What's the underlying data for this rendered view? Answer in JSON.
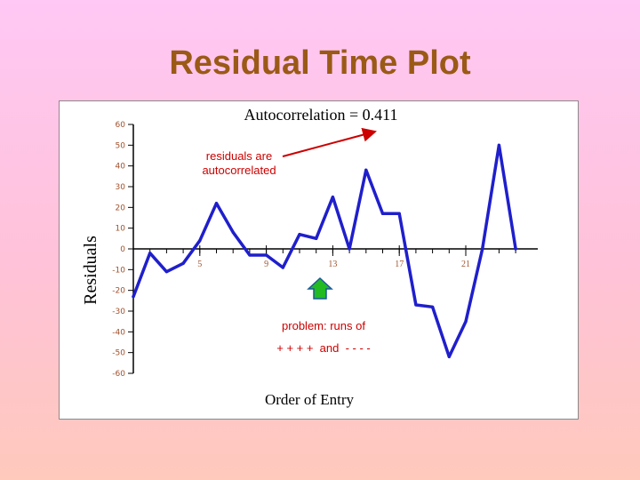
{
  "slide": {
    "title": "Residual Time Plot"
  },
  "annotations": {
    "autocorr_note_line1": "residuals are",
    "autocorr_note_line2": "autocorrelated",
    "runs_note_line1": "problem: runs of",
    "runs_note_line2": "+ + + +  and  - - - -"
  },
  "colors": {
    "series": "#1f1fcc",
    "axis": "#000000",
    "tick_labels": "#a0522d",
    "annotation": "#cc0000",
    "arrow_up_fill": "#22bb22",
    "arrow_up_stroke": "#1a5a9a",
    "title": "#9a5a16"
  },
  "icons": {
    "runs_marker": "up-arrow-icon",
    "pointer": "red-arrow-icon"
  },
  "chart_data": {
    "type": "line",
    "title": "Autocorrelation = 0.411",
    "xlabel": "Order of Entry",
    "ylabel": "Residuals",
    "ylim": [
      -60,
      60
    ],
    "yticks": [
      60,
      50,
      40,
      30,
      20,
      10,
      0,
      -10,
      -20,
      -30,
      -40,
      -50,
      -60
    ],
    "xticks": [
      5,
      9,
      13,
      17,
      21
    ],
    "grid": false,
    "series": [
      {
        "x": [
          0,
          1,
          2,
          3,
          4,
          5,
          6,
          7,
          8,
          9,
          10,
          11,
          12,
          13,
          14,
          15,
          16,
          17,
          18,
          19,
          20,
          21,
          22,
          23,
          24
        ],
        "y": [
          -23,
          -2,
          -11,
          -7,
          4,
          22,
          8,
          -3,
          -3,
          -9,
          7,
          5,
          25,
          0,
          38,
          17,
          17,
          -27,
          -28,
          -52,
          -35,
          0,
          50,
          0,
          null
        ]
      }
    ]
  }
}
